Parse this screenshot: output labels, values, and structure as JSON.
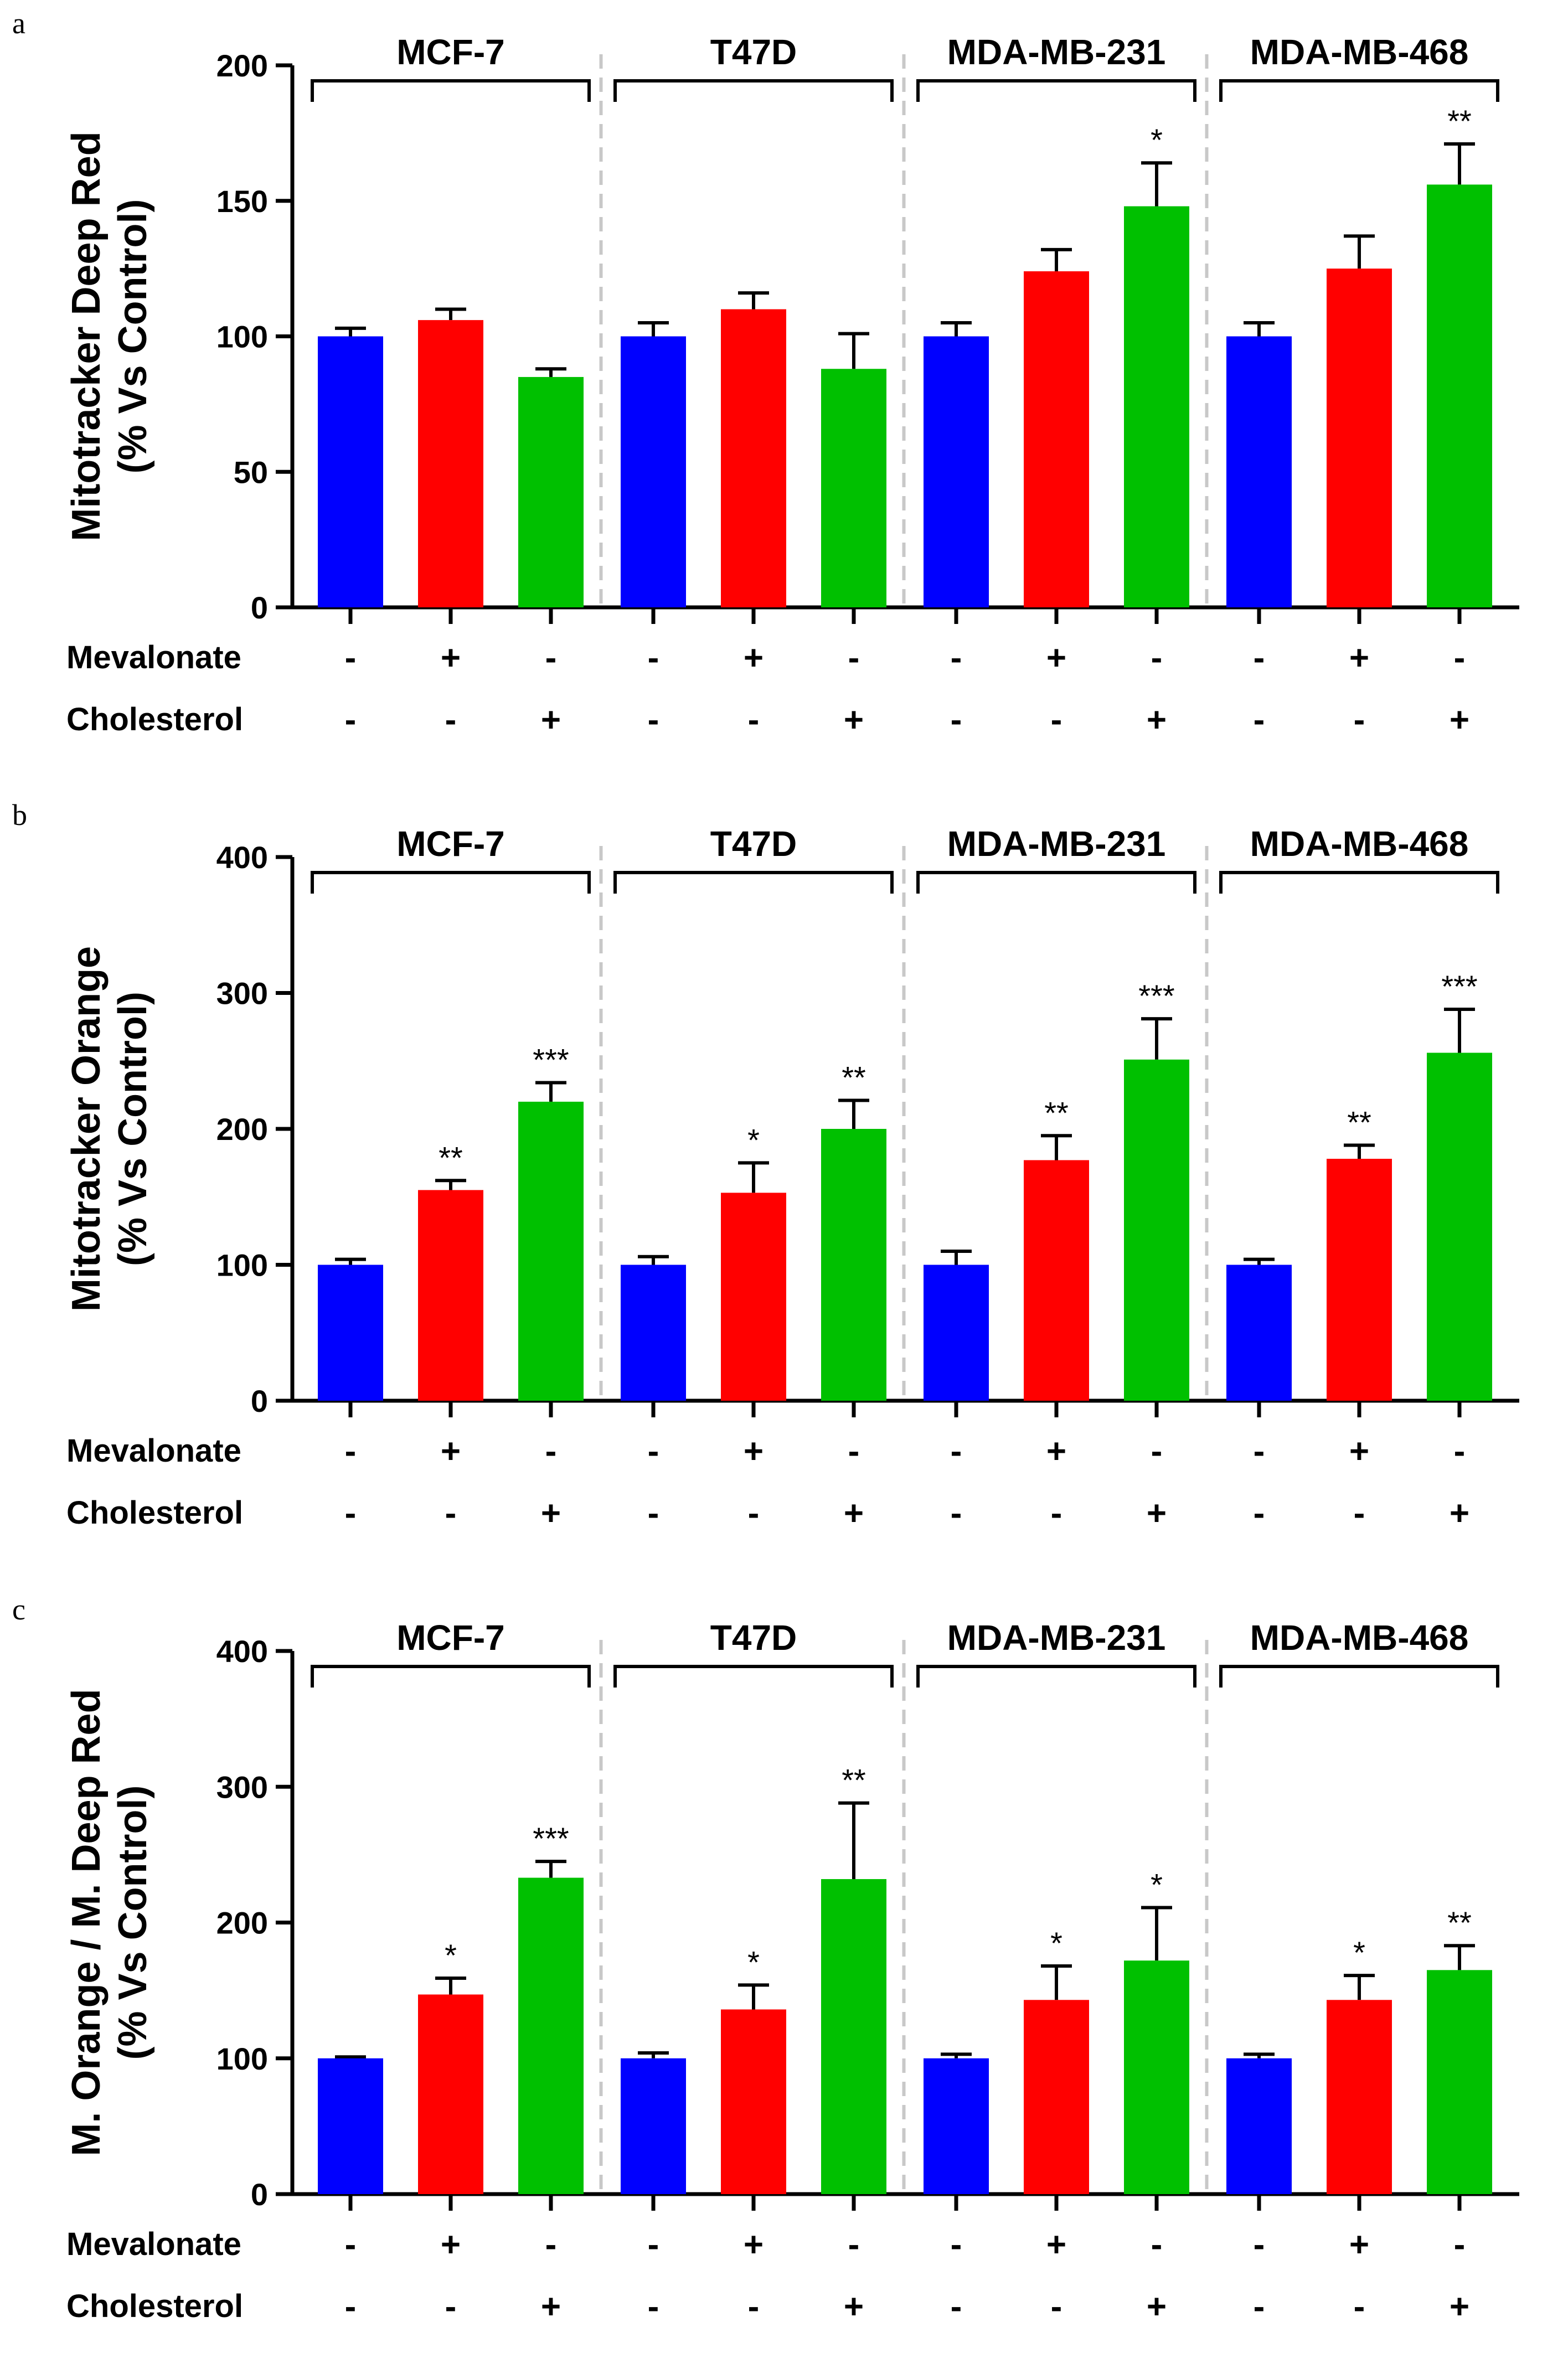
{
  "colors": {
    "control": "#0000ff",
    "mevalonate": "#ff0000",
    "cholesterol": "#00c000",
    "axis": "#000000",
    "separator": "#c8c8c8"
  },
  "row_labels": {
    "mevalonate": "Mevalonate",
    "cholesterol": "Cholesterol"
  },
  "signs": {
    "mevalonate": [
      "-",
      "+",
      "-"
    ],
    "cholesterol": [
      "-",
      "-",
      "+"
    ]
  },
  "chart_data": [
    {
      "type": "bar",
      "panel": "a",
      "ylabel_lines": [
        "Mitotracker Deep Red",
        "(% Vs Control)"
      ],
      "ylim": [
        0,
        200
      ],
      "yticks": [
        0,
        50,
        100,
        150,
        200
      ],
      "groups": [
        "MCF-7",
        "T47D",
        "MDA-MB-231",
        "MDA-MB-468"
      ],
      "series": [
        {
          "name": "Control",
          "values": [
            100,
            100,
            100,
            100
          ],
          "errors": [
            3,
            5,
            5,
            5
          ],
          "sig": [
            "",
            "",
            "",
            ""
          ]
        },
        {
          "name": "Mevalonate",
          "values": [
            106,
            110,
            124,
            125
          ],
          "errors": [
            4,
            6,
            8,
            12
          ],
          "sig": [
            "",
            "",
            "",
            ""
          ]
        },
        {
          "name": "Cholesterol",
          "values": [
            85,
            88,
            148,
            156
          ],
          "errors": [
            3,
            13,
            16,
            15
          ],
          "sig": [
            "",
            "",
            "*",
            "**"
          ]
        }
      ]
    },
    {
      "type": "bar",
      "panel": "b",
      "ylabel_lines": [
        "Mitotracker Orange",
        "(% Vs Control)"
      ],
      "ylim": [
        0,
        400
      ],
      "yticks": [
        0,
        100,
        200,
        300,
        400
      ],
      "groups": [
        "MCF-7",
        "T47D",
        "MDA-MB-231",
        "MDA-MB-468"
      ],
      "series": [
        {
          "name": "Control",
          "values": [
            100,
            100,
            100,
            100
          ],
          "errors": [
            4,
            6,
            10,
            4
          ],
          "sig": [
            "",
            "",
            "",
            ""
          ]
        },
        {
          "name": "Mevalonate",
          "values": [
            155,
            153,
            177,
            178
          ],
          "errors": [
            7,
            22,
            18,
            10
          ],
          "sig": [
            "**",
            "*",
            "**",
            "**"
          ]
        },
        {
          "name": "Cholesterol",
          "values": [
            220,
            200,
            251,
            256
          ],
          "errors": [
            14,
            21,
            30,
            32
          ],
          "sig": [
            "***",
            "**",
            "***",
            "***"
          ]
        }
      ]
    },
    {
      "type": "bar",
      "panel": "c",
      "ylabel_lines": [
        "M. Orange / M. Deep Red",
        "(% Vs Control)"
      ],
      "ylim": [
        0,
        400
      ],
      "yticks": [
        0,
        100,
        200,
        300,
        400
      ],
      "groups": [
        "MCF-7",
        "T47D",
        "MDA-MB-231",
        "MDA-MB-468"
      ],
      "series": [
        {
          "name": "Control",
          "values": [
            100,
            100,
            100,
            100
          ],
          "errors": [
            1,
            4,
            3,
            3
          ],
          "sig": [
            "",
            "",
            "",
            ""
          ]
        },
        {
          "name": "Mevalonate",
          "values": [
            147,
            136,
            143,
            143
          ],
          "errors": [
            12,
            18,
            25,
            18
          ],
          "sig": [
            "*",
            "*",
            "*",
            "*"
          ]
        },
        {
          "name": "Cholesterol",
          "values": [
            233,
            232,
            172,
            165
          ],
          "errors": [
            12,
            56,
            39,
            18
          ],
          "sig": [
            "***",
            "**",
            "*",
            "**"
          ]
        }
      ]
    }
  ]
}
